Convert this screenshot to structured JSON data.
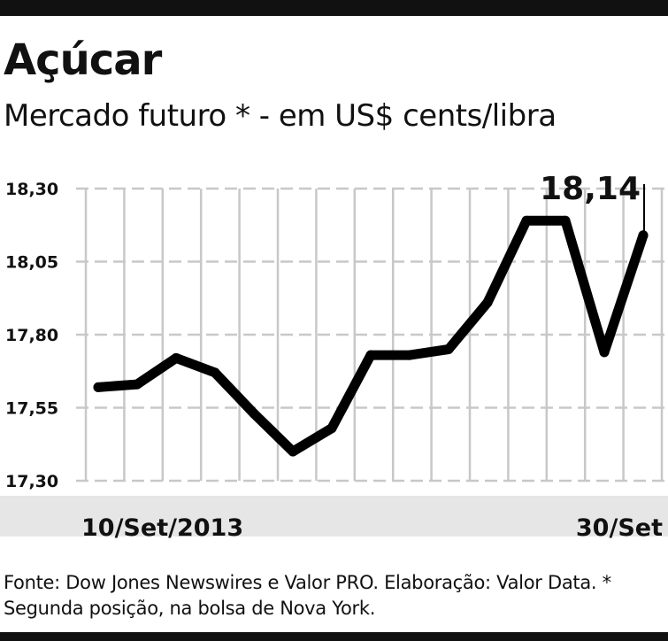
{
  "colors": {
    "rule": "#111111",
    "grid": "#c8c8c8",
    "axis_band": "#e6e6e6",
    "line": "#000000",
    "text": "#111111"
  },
  "header": {
    "title": "Açúcar",
    "subtitle": "Mercado futuro * - em US$ cents/libra"
  },
  "footer": {
    "source": "Fonte: Dow Jones Newswires e Valor PRO. Elaboração: Valor Data. * Segunda posição, na bolsa de Nova York."
  },
  "chart_data": {
    "type": "line",
    "title": "Açúcar",
    "subtitle": "Mercado futuro * - em US$ cents/libra",
    "xlabel": "",
    "ylabel": "",
    "x_start_label": "10/Set/2013",
    "x_end_label": "30/Set",
    "ylim": [
      17.3,
      18.3
    ],
    "yticks": [
      17.3,
      17.55,
      17.8,
      18.05,
      18.3
    ],
    "ytick_labels": [
      "17,30",
      "17,55",
      "17,80",
      "18,05",
      "18,30"
    ],
    "grid": true,
    "series": [
      {
        "values": [
          17.62,
          17.63,
          17.72,
          17.67,
          17.53,
          17.4,
          17.48,
          17.73,
          17.73,
          17.75,
          17.91,
          18.19,
          18.19,
          17.74,
          18.14
        ]
      }
    ],
    "last_value_label": "18,14"
  }
}
